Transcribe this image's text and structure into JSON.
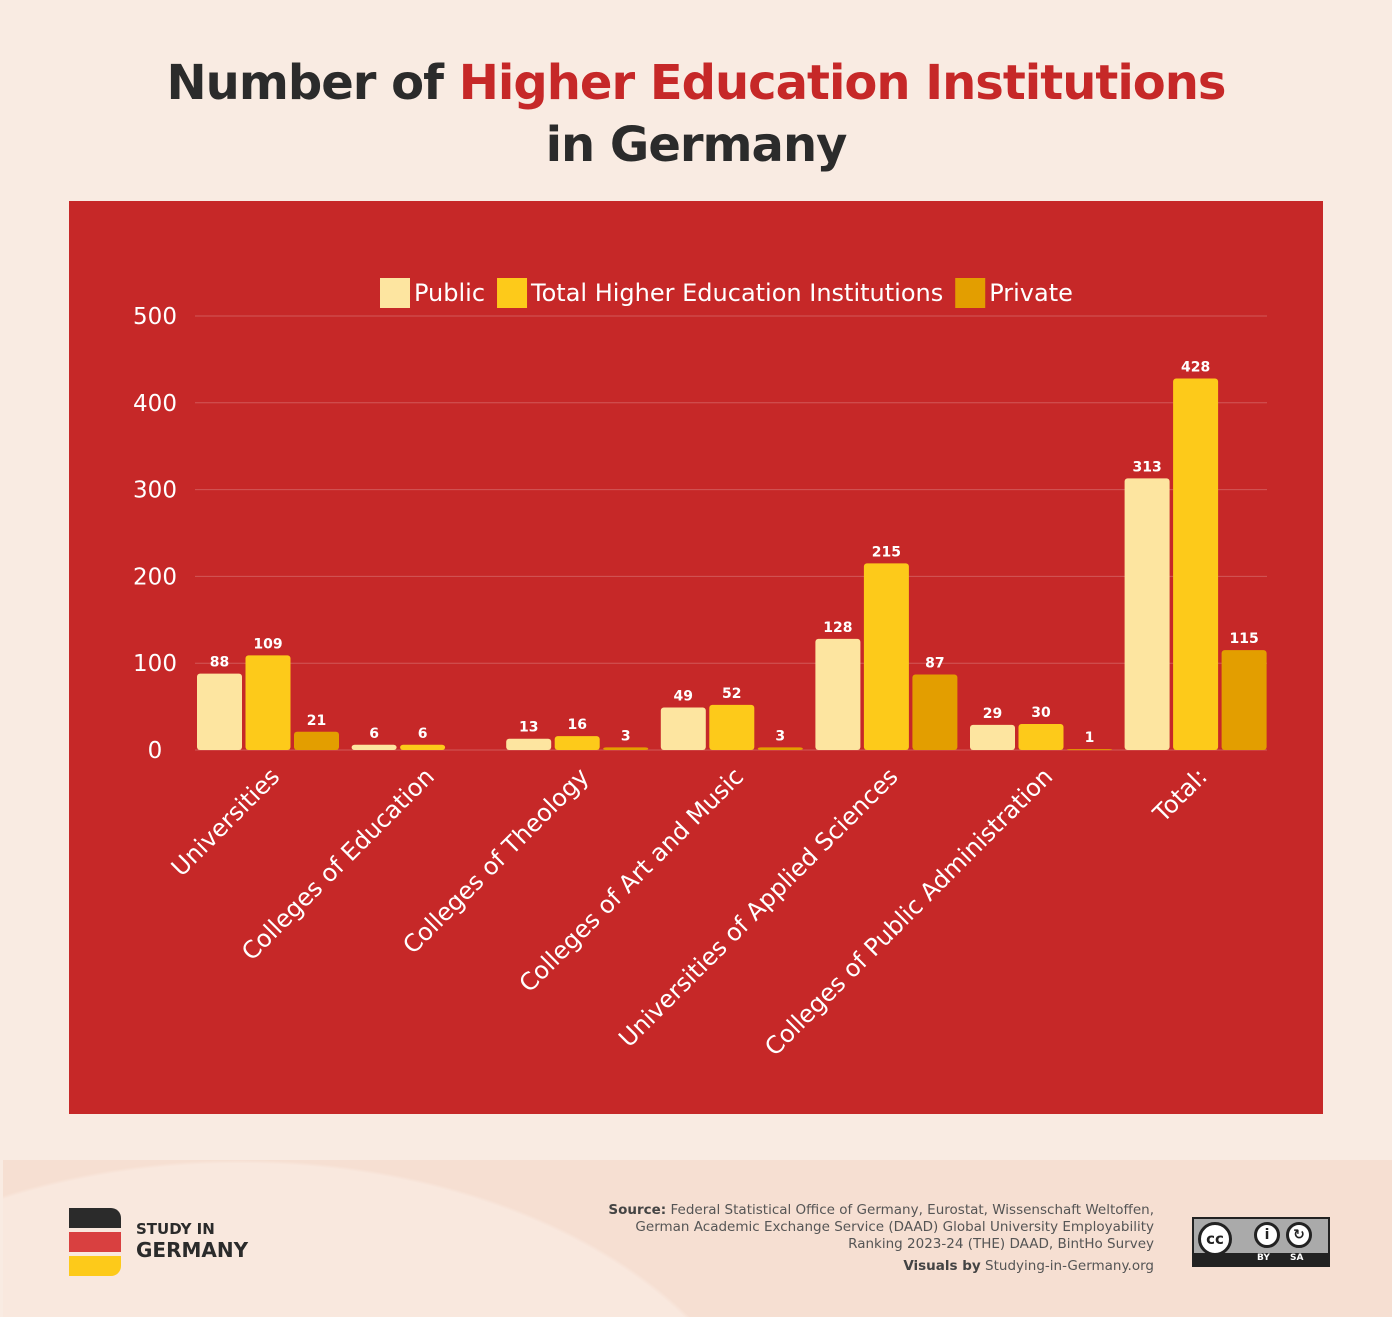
{
  "title": {
    "part1": "Number of ",
    "highlight": "Higher Education Institutions",
    "line2": "in Germany"
  },
  "colors": {
    "background": "#f9ebe2",
    "panel": "#c62828",
    "accent": "#c62828",
    "public": "#fde5a0",
    "total": "#fdca1a",
    "private": "#e39e00"
  },
  "chart_data": {
    "type": "bar",
    "title": "Number of Higher Education Institutions in Germany",
    "categories": [
      "Universities",
      "Colleges of Education",
      "Colleges of Theology",
      "Colleges of Art and Music",
      "Universities of Applied Sciences",
      "Colleges of Public Administration",
      "Total:"
    ],
    "series": [
      {
        "name": "Public",
        "color": "#fde5a0",
        "values": [
          88,
          6,
          13,
          49,
          128,
          29,
          313
        ]
      },
      {
        "name": "Total Higher Education Institutions",
        "color": "#fdca1a",
        "values": [
          109,
          6,
          16,
          52,
          215,
          30,
          428
        ]
      },
      {
        "name": "Private",
        "color": "#e39e00",
        "values": [
          21,
          null,
          3,
          3,
          87,
          1,
          115
        ]
      }
    ],
    "yticks": [
      "0",
      "100",
      "200",
      "300",
      "400",
      "500"
    ],
    "ylim": [
      0,
      500
    ],
    "grid": true,
    "legend": "top-center",
    "data_labels": true
  },
  "footer": {
    "logo_line1": "STUDY IN",
    "logo_line2": "GERMANY",
    "source_label": "Source:",
    "source_text1": "Federal Statistical Office of Germany, Eurostat, Wissenschaft Weltoffen,",
    "source_text2": "German Academic Exchange Service (DAAD) Global University Employability",
    "source_text3": "Ranking 2023-24 (THE) DAAD, BintHo Survey",
    "visuals_label": "Visuals by",
    "visuals_text": "Studying-in-Germany.org",
    "license": {
      "cc": "cc",
      "by": "BY",
      "sa": "SA"
    }
  }
}
